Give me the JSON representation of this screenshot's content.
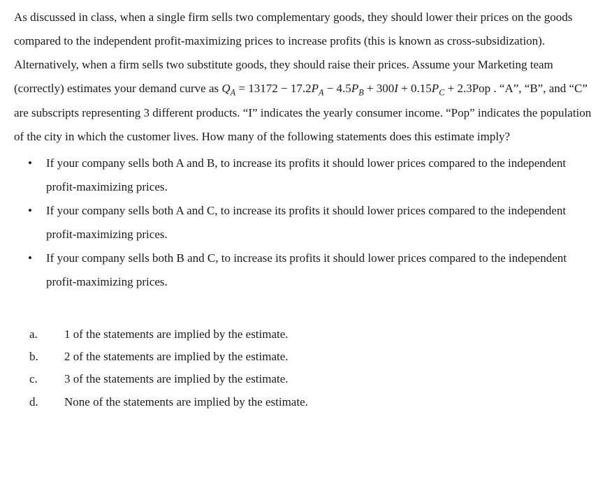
{
  "intro": {
    "part1": "As discussed in class, when a single firm sells two complementary goods, they should lower their prices on the goods compared to the independent profit-maximizing prices to increase profits (this is known as cross-subsidization). Alternatively, when a firm sells two substitute goods, they should raise their prices. Assume your Marketing team (correctly) estimates your demand curve as",
    "eq": {
      "lhs_var": "Q",
      "lhs_sub": "A",
      "eq_sign": " = ",
      "c0": "13172",
      "t1_coef": " − 17.2",
      "t1_var": "P",
      "t1_sub": "A",
      "t2_coef": " − 4.5",
      "t2_var": "P",
      "t2_sub": "B",
      "t3": " + 300",
      "t3_var": "I",
      "t4_coef": " + 0.15",
      "t4_var": "P",
      "t4_sub": "C",
      "t5": " + 2.3Pop"
    },
    "part2": " . “A”, “B”, and “C” are subscripts representing 3 different products. “I” indicates the yearly consumer income. “Pop” indicates the population of the city in which the customer lives. How many of the following statements does this estimate imply?"
  },
  "bullets": [
    "If your company sells both A and B, to increase its profits it should lower prices compared to the independent profit-maximizing prices.",
    "If your company sells both A and C, to increase its profits it should lower prices compared to the independent profit-maximizing prices.",
    "If your company sells both B and C, to increase its profits it should lower prices compared to the independent profit-maximizing prices."
  ],
  "options": [
    {
      "letter": "a.",
      "text": "1 of the statements are implied by the estimate."
    },
    {
      "letter": "b.",
      "text": "2 of the statements are implied by the estimate."
    },
    {
      "letter": "c.",
      "text": "3 of the statements are implied by the estimate."
    },
    {
      "letter": "d.",
      "text": "None of the statements are implied by the estimate."
    }
  ]
}
